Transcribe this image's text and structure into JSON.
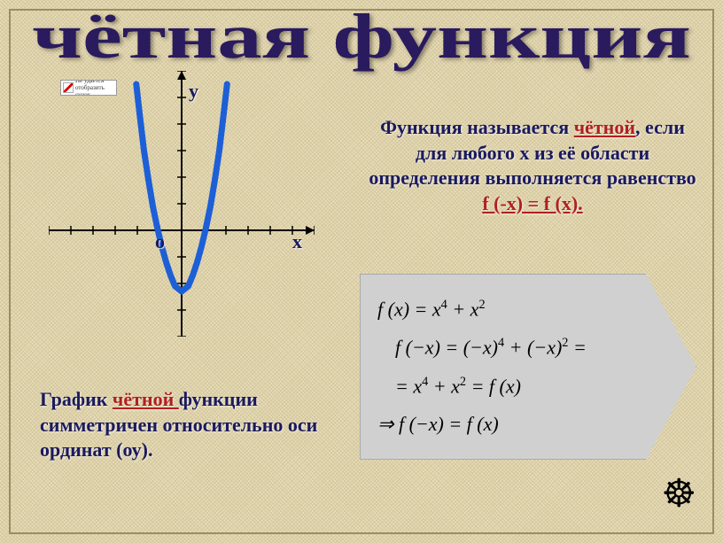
{
  "title": "чётная функция",
  "broken_img_text": "Не удается отобразить сунок.",
  "chart": {
    "type": "line",
    "x_range": [
      -6,
      6
    ],
    "y_range": [
      -4,
      6
    ],
    "x_tick_step": 1,
    "y_tick_step": 1,
    "axis_color": "#000000",
    "tick_color": "#000000",
    "curve_color": "#1d5fd6",
    "curve_width": 7,
    "background": "transparent",
    "x_label": "х",
    "y_label": "у",
    "origin_label": "о",
    "label_color": "#1a1a5e",
    "curve_points_x": [
      -2.05,
      -1.9,
      -1.7,
      -1.5,
      -1.3,
      -1.1,
      -0.9,
      -0.7,
      -0.5,
      -0.3,
      0,
      0.3,
      0.5,
      0.7,
      0.9,
      1.1,
      1.3,
      1.5,
      1.7,
      1.9,
      2.05
    ],
    "curve_points_y": [
      5.5,
      4.4,
      3.0,
      1.9,
      0.9,
      0.1,
      -0.6,
      -1.2,
      -1.7,
      -2.1,
      -2.3,
      -2.1,
      -1.7,
      -1.2,
      -0.6,
      0.1,
      0.9,
      1.9,
      3.0,
      4.4,
      5.5
    ]
  },
  "definition": {
    "line1_a": "Функция называется ",
    "line1_red": "чётной",
    "line1_b": ", если для любого х из её области определения выполняется равенство",
    "line2_red": "f (-x) = f (x)."
  },
  "formulas": {
    "line1": "f (x) = x⁴ + x²",
    "line2": "f (−x) = (−x)⁴ + (−x)² =",
    "line3": "= x⁴ + x² = f (x)",
    "line4": "⇒ f (−x) = f (x)",
    "font_size": 22,
    "bg_color": "#d0d0d0",
    "text_color": "#000000"
  },
  "caption": {
    "a": "График ",
    "red": "чётной ",
    "b": "функции симметричен относительно оси  ординат (оу)."
  },
  "wheel_icon": "☸",
  "colors": {
    "title_color": "#2a1a5e",
    "body_text_color": "#1a1a5e",
    "accent_red": "#b02020",
    "canvas_bg": "#e8dcb8"
  }
}
